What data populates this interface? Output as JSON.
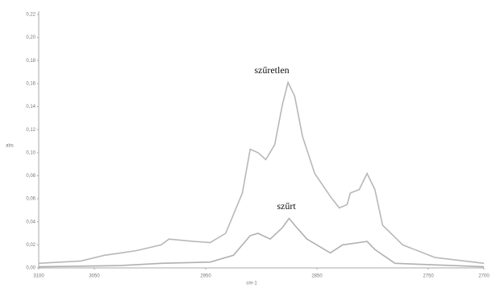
{
  "chart_data": {
    "type": "line",
    "x_label": "cm-1",
    "y_label": "abs",
    "annotations": [
      "szűretlen",
      "szűrt"
    ],
    "xlim": [
      3100,
      2700
    ],
    "xticks": [
      3100,
      3050,
      2950,
      2850,
      2750,
      2700
    ],
    "ylim": [
      0,
      0.22
    ],
    "yticks": [
      {
        "value": 0,
        "label": "0,00"
      },
      {
        "value": 0.02,
        "label": "0,02"
      },
      {
        "value": 0.04,
        "label": "0,04"
      },
      {
        "value": 0.06,
        "label": "0,06"
      },
      {
        "value": 0.08,
        "label": "0,08"
      },
      {
        "value": 0.1,
        "label": "0,10"
      },
      {
        "value": 0.12,
        "label": "0,12"
      },
      {
        "value": 0.14,
        "label": "0,14"
      },
      {
        "value": 0.16,
        "label": "0,16"
      },
      {
        "value": 0.18,
        "label": "0,18"
      },
      {
        "value": 0.2,
        "label": "0,20"
      },
      {
        "value": 0.22,
        "label": "0,22"
      }
    ],
    "grid": false,
    "series": [
      {
        "name": "szűretlen",
        "color": "#b8b8b8",
        "x": [
          3100,
          3062,
          3041,
          3026,
          3012,
          2990,
          2983,
          2961,
          2946,
          2932,
          2917,
          2910,
          2903,
          2896,
          2888,
          2881,
          2876,
          2870,
          2863,
          2852,
          2838,
          2830,
          2823,
          2820,
          2812,
          2805,
          2798,
          2791,
          2773,
          2744,
          2700
        ],
        "values": [
          0.004,
          0.006,
          0.011,
          0.013,
          0.015,
          0.02,
          0.025,
          0.023,
          0.022,
          0.03,
          0.065,
          0.103,
          0.1,
          0.094,
          0.107,
          0.142,
          0.161,
          0.149,
          0.114,
          0.082,
          0.062,
          0.052,
          0.055,
          0.065,
          0.068,
          0.082,
          0.068,
          0.037,
          0.02,
          0.009,
          0.004
        ]
      },
      {
        "name": "szűrt",
        "color": "#b0b0b0",
        "x": [
          3100,
          3026,
          2990,
          2946,
          2925,
          2910,
          2903,
          2892,
          2881,
          2875,
          2870,
          2859,
          2838,
          2827,
          2812,
          2805,
          2798,
          2780,
          2700
        ],
        "values": [
          0.001,
          0.002,
          0.004,
          0.005,
          0.011,
          0.028,
          0.03,
          0.025,
          0.035,
          0.043,
          0.037,
          0.025,
          0.013,
          0.02,
          0.022,
          0.023,
          0.016,
          0.004,
          0.001
        ]
      }
    ]
  }
}
